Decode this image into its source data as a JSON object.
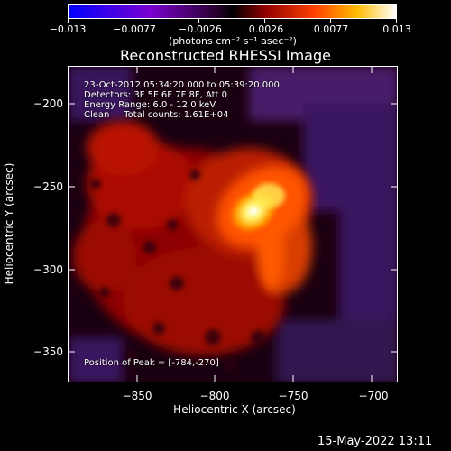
{
  "colorbar": {
    "tick_labels": [
      "−0.013",
      "−0.0077",
      "−0.0026",
      "0.0026",
      "0.0077",
      "0.013"
    ],
    "units": "(photons cm⁻² s⁻¹ asec⁻²)",
    "colors": [
      "#0000ff",
      "#6600cc",
      "#330033",
      "#000000",
      "#aa0000",
      "#ff6600",
      "#ffcc00",
      "#ffffff"
    ]
  },
  "title": "Reconstructed RHESSI Image",
  "annotations": {
    "time_range": "23-Oct-2012 05:34:20.000 to 05:39:20.000",
    "detectors": "Detectors: 3F 5F 6F 7F 8F, Att 0",
    "energy": "Energy Range: 6.0 - 12.0 keV",
    "method": "Clean     Total counts: 1.61E+04",
    "peak": "Position of Peak = [-784,-270]"
  },
  "axes": {
    "xlabel": "Heliocentric X (arcsec)",
    "ylabel": "Heliocentric Y (arcsec)",
    "x_ticks": [
      "−850",
      "−800",
      "−750",
      "−700"
    ],
    "y_ticks": [
      "−200",
      "−250",
      "−300",
      "−350"
    ]
  },
  "timestamp": "15-May-2022 13:11"
}
